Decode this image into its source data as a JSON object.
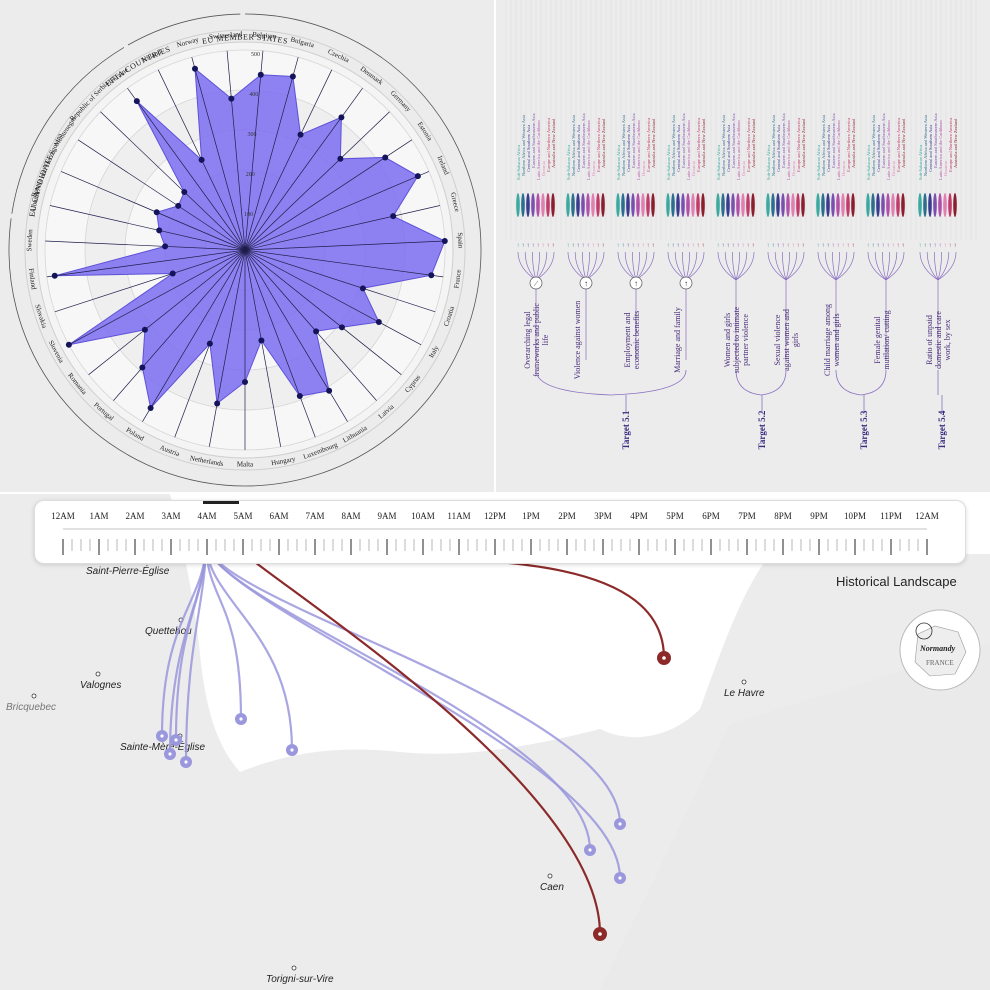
{
  "chart_data": [
    {
      "type": "radar",
      "ticks": [
        "100",
        "200",
        "300",
        "400",
        "500"
      ],
      "rmax": 500,
      "groups": [
        {
          "label": "EU MEMBER STATES"
        },
        {
          "label": "EFTA COUNTRIES"
        },
        {
          "label": "EU CANDIDATES"
        }
      ],
      "categories": [
        "Belgium",
        "Bulgaria",
        "Czechia",
        "Denmark",
        "Germany",
        "Estonia",
        "Ireland",
        "Greece",
        "Spain",
        "France",
        "Croatia",
        "Italy",
        "Cyprus",
        "Latvia",
        "Lithuania",
        "Luxembourg",
        "Hungary",
        "Malta",
        "Netherlands",
        "Austria",
        "Poland",
        "Portugal",
        "Romania",
        "Slovenia",
        "Slovakia",
        "Finland",
        "Sweden",
        "Albania",
        "Bosnia and Herzegovina",
        "Montenegro",
        "Republic of Serbia",
        "Ukraine",
        "Iceland",
        "Norway",
        "Switzerland"
      ],
      "values": [
        440,
        450,
        320,
        410,
        330,
        420,
        470,
        380,
        500,
        470,
        310,
        380,
        310,
        270,
        410,
        390,
        230,
        330,
        390,
        250,
        460,
        390,
        320,
        500,
        190,
        480,
        200,
        220,
        240,
        200,
        210,
        460,
        250,
        470,
        380
      ],
      "series_color": "#7b6cf0"
    },
    {
      "type": "tree",
      "targets": [
        {
          "label": "Target 5.1",
          "indicators": [
            "Overarching legal frameworks and public life",
            "Violence against women",
            "Employment and economic benefits",
            "Marriage and family"
          ],
          "symbols": [
            "∕",
            "↑",
            "↑",
            "↑"
          ]
        },
        {
          "label": "Target 5.2",
          "indicators": [
            "Women and girls subjected to intimate partner violence",
            "Sexual violence against women and girls"
          ]
        },
        {
          "label": "Target 5.3",
          "indicators": [
            "Child marriage among women and girls",
            "Female genital mutilation/ cutting"
          ]
        },
        {
          "label": "Target 5.4",
          "indicators": [
            "Ratio of unpaid domestic and care work, by sex"
          ]
        }
      ],
      "regions": [
        "Sub-Saharan Africa",
        "Northern Africa and Western Asia",
        "Central and Southern Asia",
        "Eastern and Southeastern Asia",
        "Latin America and the Caribbean",
        "Oceania",
        "Europe and Northern America",
        "Australia and New Zealand"
      ],
      "region_colors": [
        "#3aa99f",
        "#2c6e8f",
        "#3b3b8f",
        "#7a4fb0",
        "#b24fa6",
        "#e07fb0",
        "#c03a6a",
        "#8c1f2e"
      ]
    },
    {
      "type": "map",
      "title": "Historical Landscape",
      "timeline": [
        "12AM",
        "1AM",
        "2AM",
        "3AM",
        "4AM",
        "5AM",
        "6AM",
        "7AM",
        "8AM",
        "9AM",
        "10AM",
        "11AM",
        "12PM",
        "1PM",
        "2PM",
        "3PM",
        "4PM",
        "5PM",
        "6PM",
        "7PM",
        "8PM",
        "9PM",
        "10PM",
        "11PM",
        "12AM"
      ],
      "places": [
        "Saint-Pierre-Église",
        "Quettehou",
        "Valognes",
        "Bricquebec",
        "Sainte-Mère-Église",
        "Le Havre",
        "Caen",
        "Torigni-sur-Vire"
      ],
      "inset": {
        "region": "Normandy",
        "country": "FRANCE"
      },
      "colors": {
        "allied": "#9a97dd",
        "axis": "#8c2a2a"
      }
    }
  ]
}
